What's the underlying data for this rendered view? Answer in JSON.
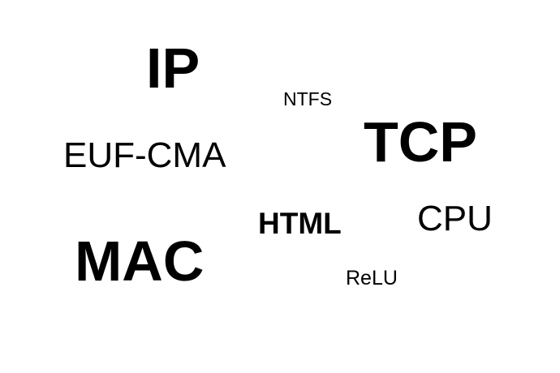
{
  "words": {
    "ip": "IP",
    "ntfs": "NTFS",
    "tcp": "TCP",
    "euf_cma": "EUF-CMA",
    "html": "HTML",
    "cpu": "CPU",
    "mac": "MAC",
    "relu": "ReLU"
  },
  "colors": {
    "background": "#ffffff",
    "text": "#000000"
  }
}
